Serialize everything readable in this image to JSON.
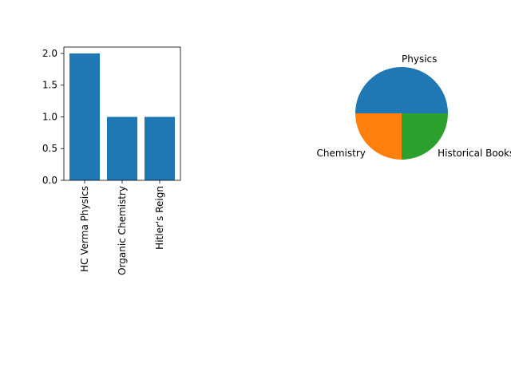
{
  "chart_data": [
    {
      "type": "bar",
      "categories": [
        "HC Verma Physics",
        "Organic Chemistry",
        "Hitler's Reign"
      ],
      "values": [
        2,
        1,
        1
      ],
      "title": "",
      "xlabel": "",
      "ylabel": "",
      "ylim": [
        0,
        2.1
      ],
      "yticks": [
        "0.0",
        "0.5",
        "1.0",
        "1.5",
        "2.0"
      ],
      "grid": false,
      "bar_color": "#1f77b4",
      "xtick_rotation": 90
    },
    {
      "type": "pie",
      "labels": [
        "Physics",
        "Chemistry",
        "Historical Books"
      ],
      "values": [
        2,
        1,
        1
      ],
      "colors": [
        "#1f77b4",
        "#ff7f0e",
        "#2ca02c"
      ],
      "title": ""
    }
  ]
}
